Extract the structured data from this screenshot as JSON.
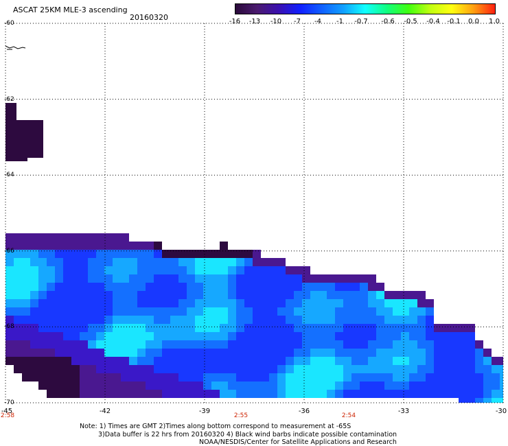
{
  "header": {
    "title": "ASCAT 25KM MLE-3 ascending",
    "date": "20160320"
  },
  "colorbar": {
    "ticks": [
      "-16",
      "-13",
      "-10",
      "-7",
      "-4",
      "-1",
      "-0.7",
      "-0.6",
      "-0.5",
      "-0.4",
      "-0.1",
      "0.0",
      "1.0"
    ],
    "colors": [
      "#2a0a3a",
      "#4a1a6e",
      "#3a10b0",
      "#1020ff",
      "#1060ff",
      "#10a0ff",
      "#10ffff",
      "#10ff80",
      "#40ff10",
      "#c0ff10",
      "#ffff10",
      "#ffa010",
      "#ff2010"
    ]
  },
  "map": {
    "lat_labels": [
      "-60",
      "-62",
      "-64",
      "-66",
      "-68",
      "-70"
    ],
    "lon_labels": [
      "-45",
      "-42",
      "-39",
      "-36",
      "-33",
      "-30"
    ],
    "time_labels": [
      "2:58",
      "2:55",
      "2:54"
    ],
    "colors": {
      "dark": "#2d0a3f",
      "purple": "#4a1890",
      "violet": "#3a18c8",
      "blue": "#1838ff",
      "mid": "#1470ff",
      "light": "#16a8ff",
      "cyan": "#1ae6ff"
    }
  },
  "notes": {
    "line1": "Note: 1) Times are GMT 2)Times along bottom correspond to measurement at -65S",
    "line2": "3)Data buffer is 22 hrs from 20160320 4) Black wind barbs indicate possible contamination",
    "line3": "NOAA/NESDIS/Center for Satellite Applications and Research"
  }
}
